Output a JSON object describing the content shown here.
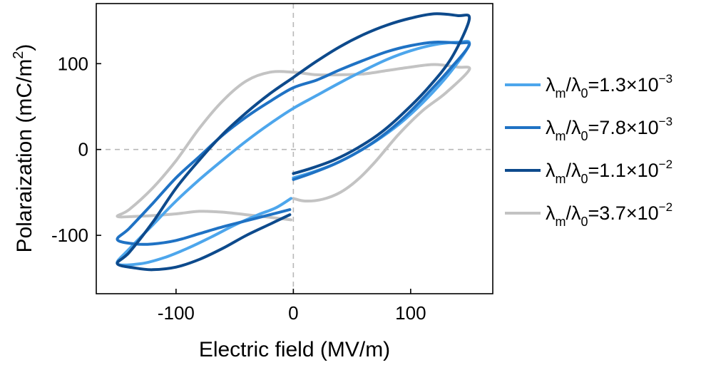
{
  "chart_data": {
    "type": "line",
    "title": "",
    "xlabel": "Electric field (MV/m)",
    "ylabel": {
      "main": "Polaraization (mC/m",
      "sup": "2",
      "close": ")"
    },
    "xlim": [
      -168,
      170
    ],
    "ylim": [
      -168,
      170
    ],
    "xticks": [
      -100,
      0,
      100
    ],
    "yticks": [
      -100,
      0,
      100
    ],
    "grid": false,
    "zero_lines": true,
    "legend_position": "right",
    "series": [
      {
        "legend": {
          "lead": "λ",
          "sub1": "m",
          "mid": "/λ",
          "sub2": "0",
          "value": "=1.3×10",
          "exp": "−3"
        },
        "color": "#4da6ec",
        "points": [
          [
            0,
            -33
          ],
          [
            15,
            -27
          ],
          [
            35,
            -17
          ],
          [
            55,
            -3
          ],
          [
            75,
            14
          ],
          [
            95,
            35
          ],
          [
            115,
            61
          ],
          [
            135,
            92
          ],
          [
            150,
            123
          ],
          [
            140,
            125
          ],
          [
            120,
            122
          ],
          [
            100,
            115
          ],
          [
            80,
            105
          ],
          [
            60,
            92
          ],
          [
            40,
            78
          ],
          [
            20,
            63
          ],
          [
            0,
            48
          ],
          [
            -20,
            30
          ],
          [
            -40,
            10
          ],
          [
            -60,
            -12
          ],
          [
            -80,
            -35
          ],
          [
            -100,
            -60
          ],
          [
            -120,
            -88
          ],
          [
            -140,
            -116
          ],
          [
            -150,
            -133
          ],
          [
            -130,
            -133
          ],
          [
            -110,
            -126
          ],
          [
            -90,
            -115
          ],
          [
            -70,
            -102
          ],
          [
            -50,
            -88
          ],
          [
            -30,
            -76
          ],
          [
            -15,
            -68
          ],
          [
            -2,
            -57
          ]
        ]
      },
      {
        "legend": {
          "lead": "λ",
          "sub1": "m",
          "mid": "/λ",
          "sub2": "0",
          "value": "=7.8×10",
          "exp": "−3"
        },
        "color": "#1f72c4",
        "points": [
          [
            0,
            -35
          ],
          [
            15,
            -28
          ],
          [
            35,
            -17
          ],
          [
            55,
            -3
          ],
          [
            75,
            15
          ],
          [
            95,
            38
          ],
          [
            115,
            66
          ],
          [
            135,
            96
          ],
          [
            150,
            122
          ],
          [
            140,
            124
          ],
          [
            120,
            125
          ],
          [
            100,
            121
          ],
          [
            80,
            114
          ],
          [
            60,
            104
          ],
          [
            40,
            93
          ],
          [
            20,
            81
          ],
          [
            0,
            72
          ],
          [
            -20,
            56
          ],
          [
            -40,
            38
          ],
          [
            -60,
            17
          ],
          [
            -80,
            -8
          ],
          [
            -100,
            -33
          ],
          [
            -120,
            -63
          ],
          [
            -140,
            -92
          ],
          [
            -150,
            -105
          ],
          [
            -135,
            -110
          ],
          [
            -120,
            -110
          ],
          [
            -100,
            -106
          ],
          [
            -80,
            -98
          ],
          [
            -60,
            -90
          ],
          [
            -40,
            -83
          ],
          [
            -20,
            -76
          ],
          [
            -3,
            -70
          ]
        ]
      },
      {
        "legend": {
          "lead": "λ",
          "sub1": "m",
          "mid": "/λ",
          "sub2": "0",
          "value": "=1.1×10",
          "exp": "−2"
        },
        "color": "#0d4a8c",
        "points": [
          [
            0,
            -28
          ],
          [
            15,
            -22
          ],
          [
            35,
            -12
          ],
          [
            55,
            2
          ],
          [
            75,
            20
          ],
          [
            95,
            44
          ],
          [
            115,
            72
          ],
          [
            135,
            107
          ],
          [
            150,
            152
          ],
          [
            140,
            156
          ],
          [
            120,
            158
          ],
          [
            100,
            153
          ],
          [
            80,
            145
          ],
          [
            60,
            134
          ],
          [
            40,
            120
          ],
          [
            20,
            103
          ],
          [
            0,
            84
          ],
          [
            -20,
            65
          ],
          [
            -40,
            43
          ],
          [
            -60,
            18
          ],
          [
            -80,
            -12
          ],
          [
            -100,
            -45
          ],
          [
            -120,
            -85
          ],
          [
            -140,
            -120
          ],
          [
            -150,
            -133
          ],
          [
            -135,
            -138
          ],
          [
            -120,
            -140
          ],
          [
            -100,
            -137
          ],
          [
            -80,
            -128
          ],
          [
            -60,
            -115
          ],
          [
            -40,
            -100
          ],
          [
            -20,
            -87
          ],
          [
            -3,
            -76
          ]
        ]
      },
      {
        "legend": {
          "lead": "λ",
          "sub1": "m",
          "mid": "/λ",
          "sub2": "0",
          "value": "=3.7×10",
          "exp": "−2"
        },
        "color": "#c3c3c3",
        "points": [
          [
            0,
            -57
          ],
          [
            10,
            -60
          ],
          [
            25,
            -58
          ],
          [
            40,
            -50
          ],
          [
            55,
            -35
          ],
          [
            70,
            -14
          ],
          [
            90,
            18
          ],
          [
            110,
            45
          ],
          [
            130,
            66
          ],
          [
            150,
            93
          ],
          [
            140,
            96
          ],
          [
            120,
            99
          ],
          [
            100,
            96
          ],
          [
            80,
            92
          ],
          [
            60,
            88
          ],
          [
            40,
            87
          ],
          [
            20,
            87
          ],
          [
            0,
            90
          ],
          [
            -20,
            90
          ],
          [
            -40,
            80
          ],
          [
            -60,
            57
          ],
          [
            -80,
            25
          ],
          [
            -100,
            -13
          ],
          [
            -120,
            -45
          ],
          [
            -140,
            -70
          ],
          [
            -150,
            -78
          ],
          [
            -135,
            -78
          ],
          [
            -120,
            -77
          ],
          [
            -100,
            -75
          ],
          [
            -80,
            -72
          ],
          [
            -60,
            -73
          ],
          [
            -40,
            -76
          ],
          [
            -20,
            -79
          ],
          [
            -2,
            -82
          ]
        ]
      }
    ]
  }
}
